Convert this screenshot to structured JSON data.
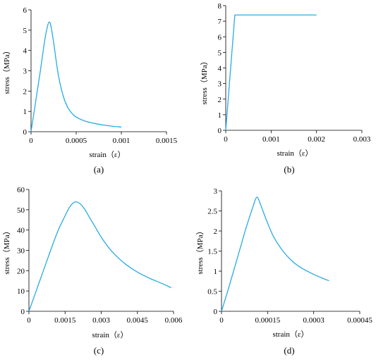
{
  "styles": {
    "line_color": "#29ABE2",
    "axis_color": "#000000"
  },
  "chart_data": [
    {
      "id": "a",
      "panel_label": "(a)",
      "type": "line",
      "xlabel": "strain（ε）",
      "ylabel": "stress（MPa）",
      "xlim": [
        0,
        0.0015
      ],
      "ylim": [
        0,
        6
      ],
      "xticks": [
        0,
        0.0005,
        0.001,
        0.0015
      ],
      "xtick_labels": [
        "0",
        "0.0005",
        "0.001",
        "0.0015"
      ],
      "yticks": [
        0,
        1,
        2,
        3,
        4,
        5,
        6
      ],
      "ytick_labels": [
        "0",
        "1",
        "2",
        "3",
        "4",
        "5",
        "6"
      ],
      "series": [
        {
          "x": [
            0,
            5e-05,
            0.0001,
            0.00015,
            0.00018,
            0.0002,
            0.00022,
            0.00025,
            0.0003,
            0.00035,
            0.0004,
            0.00045,
            0.0005,
            0.0006,
            0.0007,
            0.0008,
            0.0009,
            0.001
          ],
          "y": [
            0,
            1.45,
            2.9,
            4.45,
            5.15,
            5.4,
            5.2,
            4.4,
            2.85,
            1.85,
            1.25,
            0.92,
            0.72,
            0.52,
            0.41,
            0.33,
            0.27,
            0.23
          ]
        }
      ]
    },
    {
      "id": "b",
      "panel_label": "(b)",
      "type": "line",
      "xlabel": "strain（ε）",
      "ylabel": "stress（MPa）",
      "xlim": [
        0,
        0.003
      ],
      "ylim": [
        0,
        8
      ],
      "xticks": [
        0,
        0.001,
        0.002,
        0.003
      ],
      "xtick_labels": [
        "0",
        "0.001",
        "0.002",
        "0.003"
      ],
      "yticks": [
        0,
        1,
        2,
        3,
        4,
        5,
        6,
        7,
        8
      ],
      "ytick_labels": [
        "0",
        "1",
        "2",
        "3",
        "4",
        "5",
        "6",
        "7",
        "8"
      ],
      "series": [
        {
          "x": [
            0,
            0.0002,
            0.002
          ],
          "y": [
            0,
            7.4,
            7.4
          ]
        }
      ]
    },
    {
      "id": "c",
      "panel_label": "(c)",
      "type": "line",
      "xlabel": "strain（ε）",
      "ylabel": "stress（MPa）",
      "xlim": [
        0,
        0.006
      ],
      "ylim": [
        0,
        60
      ],
      "xticks": [
        0,
        0.0015,
        0.003,
        0.0045,
        0.006
      ],
      "xtick_labels": [
        "0",
        "0.0015",
        "0.003",
        "0.0045",
        "0.006"
      ],
      "yticks": [
        0,
        10,
        20,
        30,
        40,
        50,
        60
      ],
      "ytick_labels": [
        "0",
        "10",
        "20",
        "30",
        "40",
        "50",
        "60"
      ],
      "series": [
        {
          "x": [
            0,
            0.0003,
            0.0006,
            0.0009,
            0.0012,
            0.0015,
            0.0017,
            0.0019,
            0.0021,
            0.0023,
            0.0025,
            0.0028,
            0.003,
            0.0033,
            0.0036,
            0.004,
            0.0045,
            0.005,
            0.0055,
            0.0059
          ],
          "y": [
            0,
            10,
            20,
            30,
            39.5,
            47,
            51.5,
            53.8,
            53.2,
            50.5,
            46.5,
            40.5,
            36.5,
            31.5,
            27.5,
            23.3,
            19.3,
            16.3,
            13.8,
            11.6
          ]
        }
      ]
    },
    {
      "id": "d",
      "panel_label": "(d)",
      "type": "line",
      "xlabel": "strain（ε）",
      "ylabel": "stress（MPa）",
      "xlim": [
        0,
        0.00045
      ],
      "ylim": [
        0,
        3
      ],
      "xticks": [
        0,
        0.00015,
        0.0003,
        0.00045
      ],
      "xtick_labels": [
        "0",
        "0.00015",
        "0.0003",
        "0.00045"
      ],
      "yticks": [
        0,
        0.5,
        1,
        1.5,
        2,
        2.5,
        3
      ],
      "ytick_labels": [
        "0",
        "0.5",
        "1",
        "1.5",
        "2",
        "2.5",
        "3"
      ],
      "series": [
        {
          "x": [
            0,
            2e-05,
            4e-05,
            6e-05,
            8e-05,
            0.0001,
            0.00011,
            0.000115,
            0.00012,
            0.00013,
            0.00015,
            0.00017,
            0.0002,
            0.00023,
            0.00026,
            0.0003,
            0.00033,
            0.00035
          ],
          "y": [
            0,
            0.5,
            1.02,
            1.55,
            2.08,
            2.55,
            2.78,
            2.84,
            2.8,
            2.6,
            2.2,
            1.85,
            1.5,
            1.25,
            1.08,
            0.92,
            0.82,
            0.76
          ]
        }
      ]
    }
  ]
}
